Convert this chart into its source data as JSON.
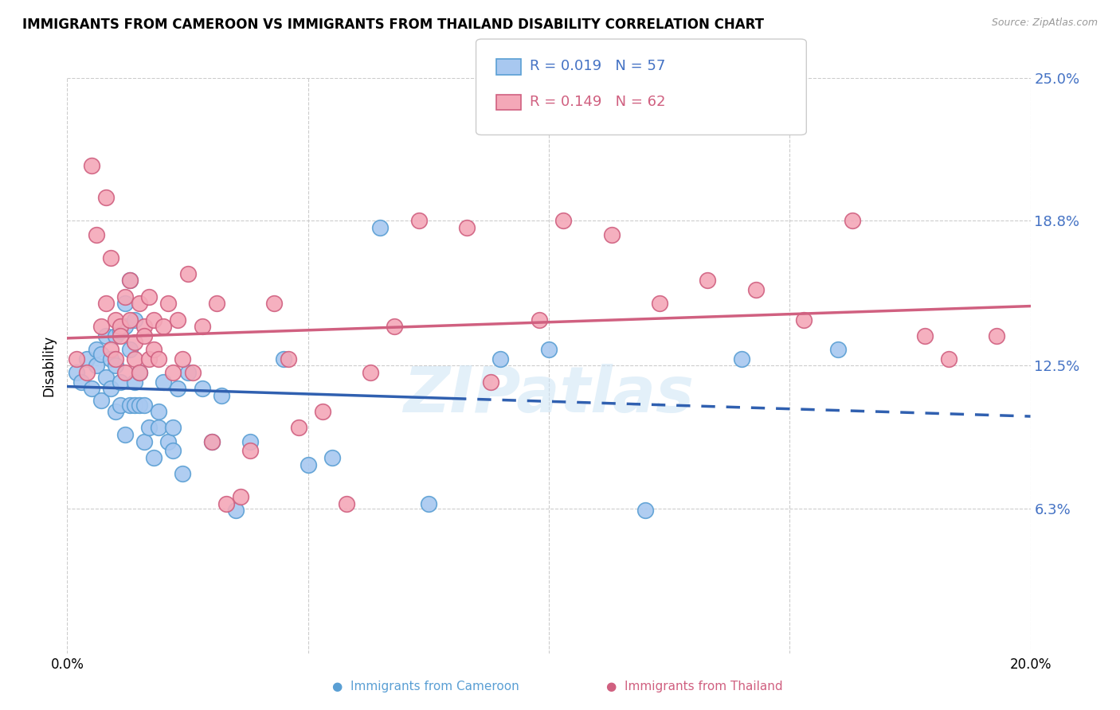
{
  "title": "IMMIGRANTS FROM CAMEROON VS IMMIGRANTS FROM THAILAND DISABILITY CORRELATION CHART",
  "source": "Source: ZipAtlas.com",
  "ylabel": "Disability",
  "x_min": 0.0,
  "x_max": 0.2,
  "y_min": 0.0,
  "y_max": 0.25,
  "cameroon_color": "#a8c8f0",
  "thailand_color": "#f4a8b8",
  "cameroon_edge": "#5a9fd4",
  "thailand_edge": "#d06080",
  "trend_cameroon_color": "#3060b0",
  "trend_thailand_color": "#d06080",
  "watermark": "ZIPatlas",
  "cameroon_R": 0.019,
  "cameroon_N": 57,
  "thailand_R": 0.149,
  "thailand_N": 62,
  "cameroon_x": [
    0.002,
    0.003,
    0.004,
    0.005,
    0.006,
    0.006,
    0.007,
    0.007,
    0.008,
    0.008,
    0.009,
    0.009,
    0.01,
    0.01,
    0.01,
    0.011,
    0.011,
    0.011,
    0.012,
    0.012,
    0.012,
    0.013,
    0.013,
    0.013,
    0.014,
    0.014,
    0.014,
    0.015,
    0.015,
    0.016,
    0.016,
    0.017,
    0.018,
    0.019,
    0.019,
    0.02,
    0.021,
    0.022,
    0.022,
    0.023,
    0.024,
    0.025,
    0.028,
    0.03,
    0.032,
    0.035,
    0.038,
    0.045,
    0.05,
    0.055,
    0.065,
    0.075,
    0.09,
    0.1,
    0.12,
    0.14,
    0.16
  ],
  "cameroon_y": [
    0.122,
    0.118,
    0.128,
    0.115,
    0.125,
    0.132,
    0.11,
    0.13,
    0.138,
    0.12,
    0.115,
    0.128,
    0.105,
    0.138,
    0.125,
    0.108,
    0.14,
    0.118,
    0.095,
    0.142,
    0.152,
    0.132,
    0.108,
    0.162,
    0.118,
    0.108,
    0.145,
    0.108,
    0.122,
    0.092,
    0.108,
    0.098,
    0.085,
    0.105,
    0.098,
    0.118,
    0.092,
    0.088,
    0.098,
    0.115,
    0.078,
    0.122,
    0.115,
    0.092,
    0.112,
    0.062,
    0.092,
    0.128,
    0.082,
    0.085,
    0.185,
    0.065,
    0.128,
    0.132,
    0.062,
    0.128,
    0.132
  ],
  "thailand_x": [
    0.002,
    0.004,
    0.005,
    0.006,
    0.007,
    0.008,
    0.008,
    0.009,
    0.009,
    0.01,
    0.01,
    0.011,
    0.011,
    0.012,
    0.012,
    0.013,
    0.013,
    0.014,
    0.014,
    0.015,
    0.015,
    0.016,
    0.016,
    0.017,
    0.017,
    0.018,
    0.018,
    0.019,
    0.02,
    0.021,
    0.022,
    0.023,
    0.024,
    0.025,
    0.026,
    0.028,
    0.03,
    0.031,
    0.033,
    0.036,
    0.038,
    0.043,
    0.046,
    0.048,
    0.053,
    0.058,
    0.063,
    0.068,
    0.073,
    0.083,
    0.088,
    0.098,
    0.103,
    0.113,
    0.123,
    0.133,
    0.143,
    0.153,
    0.163,
    0.178,
    0.183,
    0.193
  ],
  "thailand_y": [
    0.128,
    0.122,
    0.212,
    0.182,
    0.142,
    0.198,
    0.152,
    0.172,
    0.132,
    0.145,
    0.128,
    0.142,
    0.138,
    0.155,
    0.122,
    0.162,
    0.145,
    0.128,
    0.135,
    0.152,
    0.122,
    0.142,
    0.138,
    0.128,
    0.155,
    0.145,
    0.132,
    0.128,
    0.142,
    0.152,
    0.122,
    0.145,
    0.128,
    0.165,
    0.122,
    0.142,
    0.092,
    0.152,
    0.065,
    0.068,
    0.088,
    0.152,
    0.128,
    0.098,
    0.105,
    0.065,
    0.122,
    0.142,
    0.188,
    0.185,
    0.118,
    0.145,
    0.188,
    0.182,
    0.152,
    0.162,
    0.158,
    0.145,
    0.188,
    0.138,
    0.128,
    0.138
  ]
}
